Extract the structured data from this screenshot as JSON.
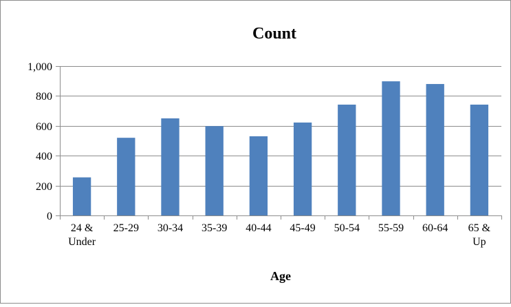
{
  "chart_data": {
    "type": "bar",
    "title": "Count",
    "xlabel": "Age",
    "ylabel": "",
    "ylim": [
      0,
      1000
    ],
    "yticks": [
      0,
      200,
      400,
      600,
      800,
      1000
    ],
    "ytick_labels": [
      "0",
      "200",
      "400",
      "600",
      "800",
      "1,000"
    ],
    "categories": [
      [
        "24 &",
        "Under"
      ],
      [
        "25-29"
      ],
      [
        "30-34"
      ],
      [
        "35-39"
      ],
      [
        "40-44"
      ],
      [
        "45-49"
      ],
      [
        "50-54"
      ],
      [
        "55-59"
      ],
      [
        "60-64"
      ],
      [
        "65 &",
        "Up"
      ]
    ],
    "values": [
      255,
      520,
      650,
      598,
      530,
      622,
      742,
      898,
      880,
      742
    ],
    "bar_color": "#4F81BD",
    "grid": true,
    "legend": "none"
  }
}
